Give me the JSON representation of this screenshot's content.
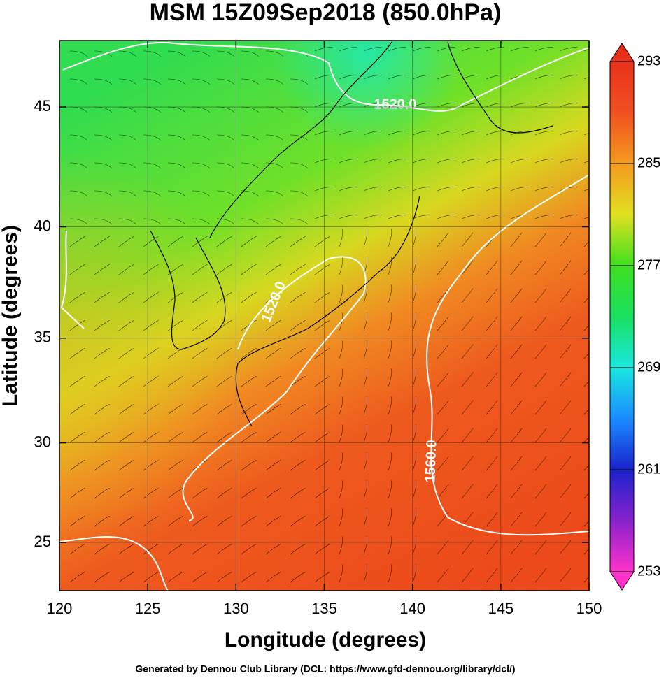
{
  "chart_data": {
    "type": "map",
    "title": "MSM 15Z09Sep2018 (850.0hPa)",
    "x_label": "Longitude (degrees)",
    "y_label": "Latitude  (degrees)",
    "projection": "mercator",
    "xlim": [
      120,
      150
    ],
    "ylim": [
      22.5,
      47.6
    ],
    "xticks": [
      120,
      125,
      130,
      135,
      140,
      145,
      150
    ],
    "yticks": [
      25,
      30,
      35,
      40,
      45
    ],
    "grid": true,
    "contour_labels": [
      "1520.0",
      "1520.0",
      "1560.0"
    ],
    "colorbar": {
      "range": [
        253,
        293
      ],
      "ticks": [
        253,
        261,
        269,
        277,
        285,
        293
      ],
      "colors": [
        "#ff33cc",
        "#8822cc",
        "#1a22cc",
        "#1a8cff",
        "#1ae8e0",
        "#1ae060",
        "#40e020",
        "#e0e020",
        "#f59a20",
        "#f05020",
        "#e8301a"
      ]
    },
    "footer": "Generated by Dennou Club Library (DCL: https://www.gfd-dennou.org/library/dcl/)"
  }
}
